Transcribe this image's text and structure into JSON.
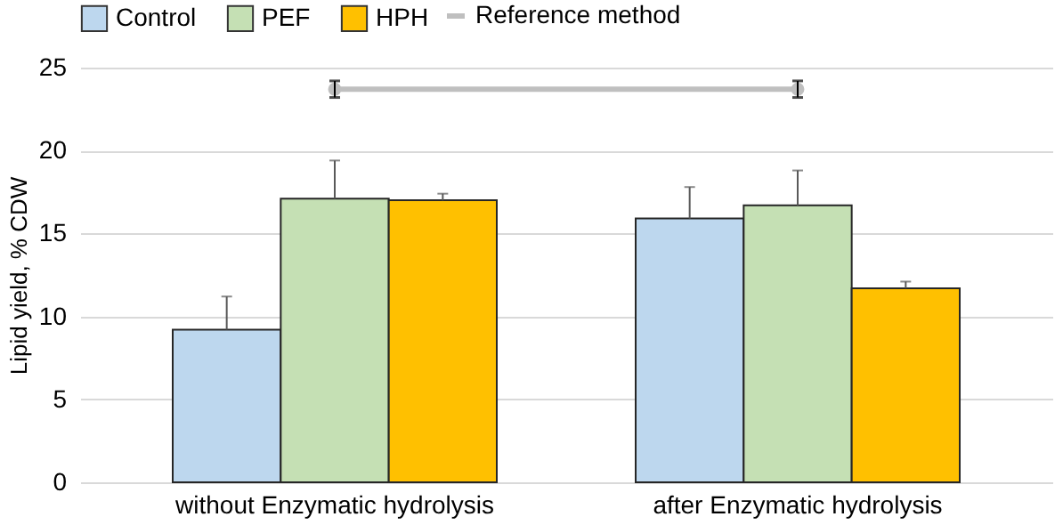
{
  "chart_data": {
    "type": "bar",
    "ylabel": "Lipid yield, % CDW",
    "categories": [
      "without Enzymatic hydrolysis",
      "after Enzymatic hydrolysis"
    ],
    "series": [
      {
        "name": "Control",
        "color": "#bdd7ee",
        "values": [
          9.2,
          15.9
        ],
        "errors": [
          [
            9.2,
            11.2
          ],
          [
            15.9,
            17.8
          ]
        ]
      },
      {
        "name": "PEF",
        "color": "#c5e0b4",
        "values": [
          17.1,
          16.7
        ],
        "errors": [
          [
            17.1,
            19.4
          ],
          [
            16.7,
            18.8
          ]
        ]
      },
      {
        "name": "HPH",
        "color": "#ffc000",
        "values": [
          17.0,
          11.7
        ],
        "errors": [
          [
            17.0,
            17.4
          ],
          [
            11.7,
            12.1
          ]
        ]
      },
      {
        "name": "Reference method",
        "type": "line",
        "color": "#bfbfbf",
        "values": [
          23.7,
          23.7
        ],
        "errors": [
          0.5,
          0.5
        ]
      }
    ],
    "ylim": [
      0,
      25
    ],
    "yticks": [
      0,
      5,
      10,
      15,
      20,
      25
    ],
    "grid": "y",
    "legend": "top",
    "marker": "circle"
  }
}
